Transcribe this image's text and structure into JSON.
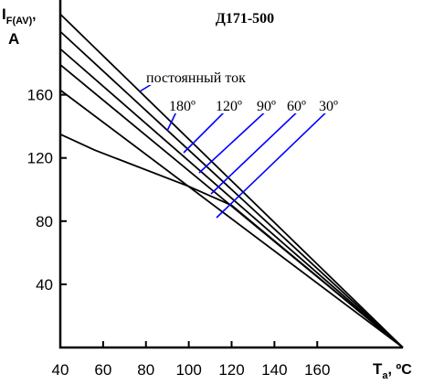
{
  "chart_data": {
    "type": "line",
    "title": "Д171-500",
    "ylabel": {
      "main": "I",
      "sub": "F(AV)",
      "tail": ",",
      "line2": "A"
    },
    "xlabel": {
      "main": "T",
      "sub": "a",
      "unit": ", ºC"
    },
    "xlim": [
      40,
      200
    ],
    "ylim": [
      0,
      220
    ],
    "x_ticks": [
      "40",
      "60",
      "80",
      "100",
      "120",
      "140",
      "160"
    ],
    "y_ticks": [
      "40",
      "80",
      "120",
      "160"
    ],
    "grid": false,
    "series": [
      {
        "name": "постоянный ток",
        "x": [
          40,
          200
        ],
        "y": [
          211,
          0
        ]
      },
      {
        "name": "180º",
        "x": [
          40,
          200
        ],
        "y": [
          200,
          0
        ]
      },
      {
        "name": "120º",
        "x": [
          40,
          200
        ],
        "y": [
          189,
          0
        ]
      },
      {
        "name": "90º",
        "x": [
          40,
          200
        ],
        "y": [
          179,
          0
        ]
      },
      {
        "name": "60º",
        "x": [
          40,
          200
        ],
        "y": [
          163,
          0
        ]
      },
      {
        "name": "30º",
        "x": [
          40,
          56,
          100,
          120,
          200
        ],
        "y": [
          135,
          125,
          102,
          90,
          0
        ]
      }
    ],
    "annotations": [
      {
        "label": "постоянный ток",
        "series": "постоянный ток"
      },
      {
        "label": "180º",
        "series": "180º"
      },
      {
        "label": "120º",
        "series": "120º"
      },
      {
        "label": "90º",
        "series": "90º"
      },
      {
        "label": "60º",
        "series": "60º"
      },
      {
        "label": "30º",
        "series": "30º"
      }
    ],
    "colors": {
      "curves": "#000000",
      "leaders": "#0000ff",
      "axes": "#000000"
    }
  }
}
